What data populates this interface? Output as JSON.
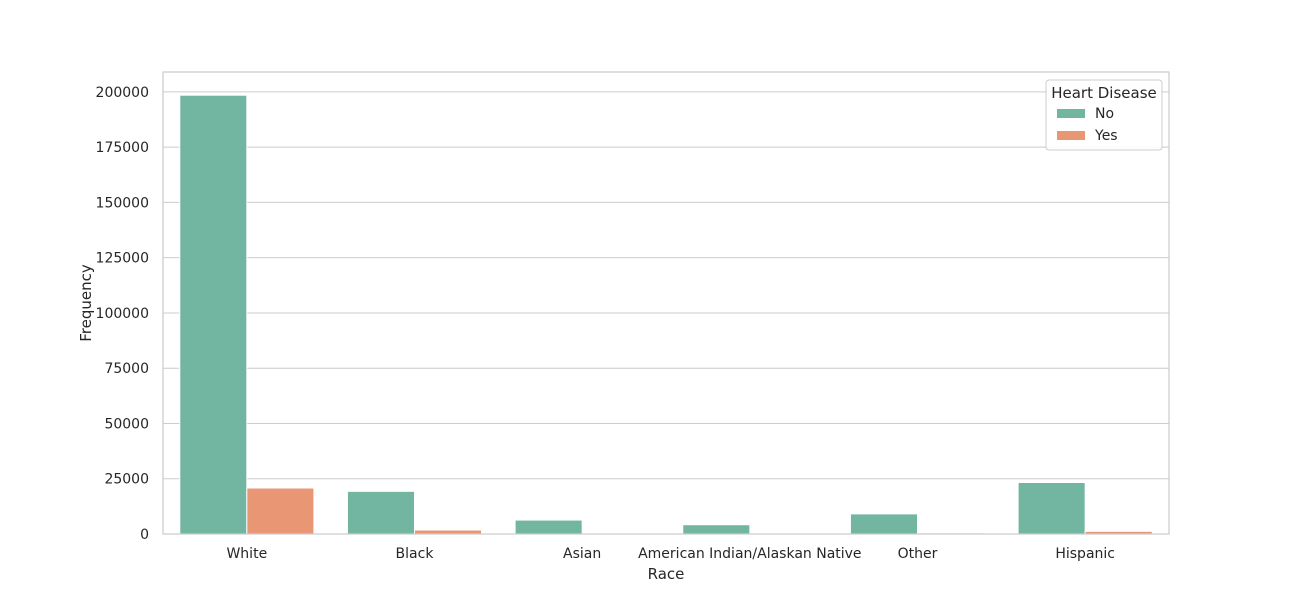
{
  "chart_data": {
    "type": "bar",
    "title": "",
    "xlabel": "Race",
    "ylabel": "Frequency",
    "categories": [
      "White",
      "Black",
      "Asian",
      "American Indian/Alaskan Native",
      "Other",
      "Hispanic"
    ],
    "series": [
      {
        "name": "No",
        "color": "#72b6a1",
        "values": [
          198500,
          19300,
          6300,
          4200,
          9100,
          23300
        ]
      },
      {
        "name": "Yes",
        "color": "#e99675",
        "values": [
          20800,
          1800,
          300,
          250,
          500,
          1200
        ]
      }
    ],
    "ylim": [
      0,
      209000
    ],
    "yticks": [
      0,
      25000,
      50000,
      75000,
      100000,
      125000,
      150000,
      175000,
      200000
    ],
    "grid": "horizontal",
    "legend": {
      "title": "Heart Disease",
      "placement": "top-right"
    }
  }
}
